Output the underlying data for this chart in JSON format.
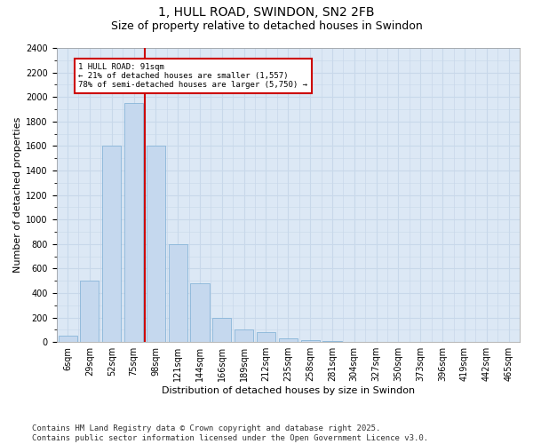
{
  "title_line1": "1, HULL ROAD, SWINDON, SN2 2FB",
  "title_line2": "Size of property relative to detached houses in Swindon",
  "xlabel": "Distribution of detached houses by size in Swindon",
  "ylabel": "Number of detached properties",
  "bar_color": "#c5d8ee",
  "bar_edgecolor": "#7aadd4",
  "grid_color": "#c8d8ea",
  "background_color": "#dce8f5",
  "annotation_box_color": "#cc0000",
  "annotation_line_color": "#cc0000",
  "annotation_text": "1 HULL ROAD: 91sqm\n← 21% of detached houses are smaller (1,557)\n78% of semi-detached houses are larger (5,750) →",
  "property_value": 91,
  "categories": [
    "6sqm",
    "29sqm",
    "52sqm",
    "75sqm",
    "98sqm",
    "121sqm",
    "144sqm",
    "166sqm",
    "189sqm",
    "212sqm",
    "235sqm",
    "258sqm",
    "281sqm",
    "304sqm",
    "327sqm",
    "350sqm",
    "373sqm",
    "396sqm",
    "419sqm",
    "442sqm",
    "465sqm"
  ],
  "n_bars": 21,
  "values": [
    55,
    500,
    1600,
    1950,
    1600,
    800,
    480,
    200,
    100,
    80,
    30,
    15,
    10,
    0,
    0,
    0,
    0,
    0,
    0,
    0,
    5
  ],
  "ylim": [
    0,
    2400
  ],
  "yticks": [
    0,
    200,
    400,
    600,
    800,
    1000,
    1200,
    1400,
    1600,
    1800,
    2000,
    2200,
    2400
  ],
  "footnote": "Contains HM Land Registry data © Crown copyright and database right 2025.\nContains public sector information licensed under the Open Government Licence v3.0.",
  "title_fontsize": 10,
  "subtitle_fontsize": 9,
  "label_fontsize": 8,
  "tick_fontsize": 7,
  "footnote_fontsize": 6.5
}
